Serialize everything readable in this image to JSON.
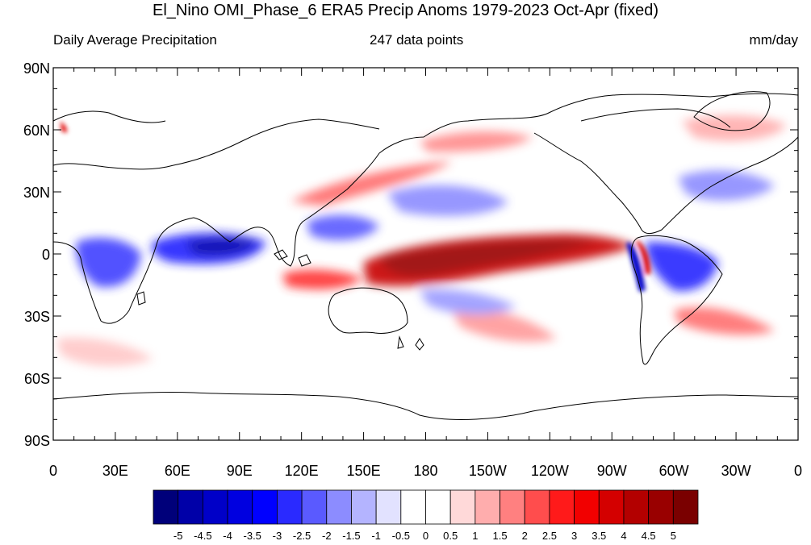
{
  "title": "El_Nino OMI_Phase_6 ERA5 Precip Anoms 1979-2023 Oct-Apr (fixed)",
  "left_string": "Daily Average Precipitation",
  "center_string": "247 data points",
  "right_string": "mm/day",
  "lat_labels": [
    "90N",
    "60N",
    "30N",
    "0",
    "30S",
    "60S",
    "90S"
  ],
  "lon_labels": [
    "0",
    "30E",
    "60E",
    "90E",
    "120E",
    "150E",
    "180",
    "150W",
    "120W",
    "90W",
    "60W",
    "30W",
    "0"
  ],
  "colorbar": {
    "labels": [
      "-5",
      "-4.5",
      "-4",
      "-3.5",
      "-3",
      "-2.5",
      "-2",
      "-1.5",
      "-1",
      "-0.5",
      "0",
      "0.5",
      "1",
      "1.5",
      "2",
      "2.5",
      "3",
      "3.5",
      "4",
      "4.5",
      "5"
    ],
    "colors": [
      "#00007a",
      "#0000a8",
      "#0000c8",
      "#0000e0",
      "#0000ff",
      "#2a2aff",
      "#5a5aff",
      "#8c8cff",
      "#b4b4ff",
      "#e2e2ff",
      "#ffffff",
      "#ffffff",
      "#ffd9d9",
      "#ffadad",
      "#ff8080",
      "#ff4d4d",
      "#ff1a1a",
      "#f20000",
      "#d40000",
      "#b30000",
      "#990000",
      "#7a0000"
    ]
  }
}
